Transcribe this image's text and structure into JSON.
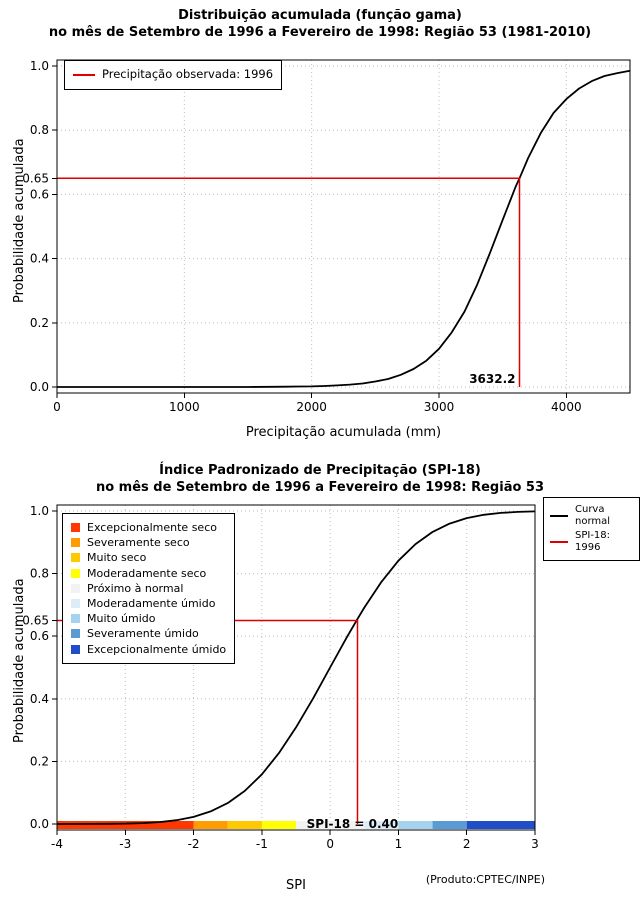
{
  "credit": "(Produto:CPTEC/INPE)",
  "colors": {
    "marker_red": "#dd0000",
    "curve_black": "#000000",
    "grid_gray": "#bdbdbd"
  },
  "chart_data": [
    {
      "type": "line",
      "title": "Distribuição acumulada (função gama)",
      "subtitle": "no mês de Setembro de 1996 a Fevereiro de 1998: Região 53 (1981-2010)",
      "xlabel": "Precipitação acumulada (mm)",
      "ylabel": "Probabilidade acumulada",
      "xlim": [
        0,
        4500
      ],
      "ylim": [
        0,
        1
      ],
      "xticks": [
        0,
        1000,
        2000,
        3000,
        4000
      ],
      "xtick_labels": [
        "0",
        "1000",
        "2000",
        "3000",
        "4000"
      ],
      "yticks": [
        0,
        0.2,
        0.4,
        0.6,
        0.8,
        1
      ],
      "ytick_labels": [
        "0.0",
        "0.2",
        "0.4",
        "0.6",
        "0.8",
        "1.0"
      ],
      "highlight_ytick": {
        "value": 0.65,
        "label": "0.65"
      },
      "legend": {
        "items": [
          {
            "label": "Precipitação observada: 1996",
            "color": "#dd0000"
          }
        ]
      },
      "marker": {
        "x": 3632.2,
        "y": 0.65,
        "label": "3632.2",
        "color": "#dd0000"
      },
      "series": [
        {
          "name": "Distribuição gama acumulada",
          "color": "#000000",
          "points": [
            [
              0,
              0
            ],
            [
              400,
              0
            ],
            [
              800,
              0
            ],
            [
              1200,
              0
            ],
            [
              1500,
              0
            ],
            [
              1700,
              0.0005
            ],
            [
              1800,
              0.001
            ],
            [
              1900,
              0.0015
            ],
            [
              2000,
              0.002
            ],
            [
              2100,
              0.0032
            ],
            [
              2200,
              0.005
            ],
            [
              2300,
              0.0075
            ],
            [
              2400,
              0.011
            ],
            [
              2500,
              0.017
            ],
            [
              2600,
              0.025
            ],
            [
              2700,
              0.038
            ],
            [
              2800,
              0.056
            ],
            [
              2900,
              0.082
            ],
            [
              3000,
              0.119
            ],
            [
              3100,
              0.17
            ],
            [
              3200,
              0.235
            ],
            [
              3300,
              0.319
            ],
            [
              3400,
              0.417
            ],
            [
              3500,
              0.521
            ],
            [
              3600,
              0.622
            ],
            [
              3632.2,
              0.65
            ],
            [
              3700,
              0.713
            ],
            [
              3800,
              0.792
            ],
            [
              3900,
              0.854
            ],
            [
              4000,
              0.897
            ],
            [
              4100,
              0.93
            ],
            [
              4200,
              0.953
            ],
            [
              4300,
              0.969
            ],
            [
              4400,
              0.978
            ],
            [
              4500,
              0.985
            ]
          ]
        }
      ]
    },
    {
      "type": "line",
      "title": "Índice Padronizado de Precipitação (SPI-18)",
      "subtitle": "no mês de Setembro de 1996 a Fevereiro de 1998: Região 53",
      "xlabel": "SPI",
      "ylabel": "Probabilidade acumulada",
      "xlim": [
        -4,
        3
      ],
      "ylim": [
        0,
        1
      ],
      "xticks": [
        -4,
        -3,
        -2,
        -1,
        0,
        1,
        2,
        3
      ],
      "xtick_labels": [
        "-4",
        "-3",
        "-2",
        "-1",
        "0",
        "1",
        "2",
        "3"
      ],
      "yticks": [
        0,
        0.2,
        0.4,
        0.6,
        0.8,
        1
      ],
      "ytick_labels": [
        "0.0",
        "0.2",
        "0.4",
        "0.6",
        "0.8",
        "1.0"
      ],
      "highlight_ytick": {
        "value": 0.65,
        "label": "0.65"
      },
      "category_legend": {
        "items": [
          {
            "label": "Excepcionalmente seco",
            "color": "#ff3800"
          },
          {
            "label": "Severamente seco",
            "color": "#ff9c00"
          },
          {
            "label": "Muito seco",
            "color": "#ffc800"
          },
          {
            "label": "Moderadamente seco",
            "color": "#ffff00"
          },
          {
            "label": "Próximo à normal",
            "color": "#f2f2f2"
          },
          {
            "label": "Moderadamente úmido",
            "color": "#dcedf8"
          },
          {
            "label": "Muito úmido",
            "color": "#a6d2ee"
          },
          {
            "label": "Severamente úmido",
            "color": "#5b9bd5"
          },
          {
            "label": "Excepcionalmente úmido",
            "color": "#1f4ec8"
          }
        ]
      },
      "line_legend": {
        "items": [
          {
            "label": "Curva\nnormal",
            "color": "#000000"
          },
          {
            "label": "SPI-18: 1996",
            "color": "#dd0000"
          }
        ]
      },
      "marker": {
        "x": 0.4,
        "y": 0.65,
        "label": "SPI-18 = 0.40",
        "color": "#dd0000"
      },
      "colorbar": {
        "segments": [
          {
            "from": -4,
            "to": -2,
            "color": "#ff3800"
          },
          {
            "from": -2,
            "to": -1.5,
            "color": "#ff9c00"
          },
          {
            "from": -1.5,
            "to": -1,
            "color": "#ffc800"
          },
          {
            "from": -1,
            "to": -0.5,
            "color": "#ffff00"
          },
          {
            "from": -0.5,
            "to": 0.5,
            "color": "#f2f2f2"
          },
          {
            "from": 0.5,
            "to": 1,
            "color": "#dcedf8"
          },
          {
            "from": 1,
            "to": 1.5,
            "color": "#a6d2ee"
          },
          {
            "from": 1.5,
            "to": 2,
            "color": "#5b9bd5"
          },
          {
            "from": 2,
            "to": 3,
            "color": "#1f4ec8"
          }
        ]
      },
      "series": [
        {
          "name": "Curva normal",
          "color": "#000000",
          "points": [
            [
              -4,
              0.0
            ],
            [
              -3.75,
              0.0001
            ],
            [
              -3.5,
              0.0002
            ],
            [
              -3.25,
              0.0006
            ],
            [
              -3,
              0.0013
            ],
            [
              -2.75,
              0.003
            ],
            [
              -2.5,
              0.0062
            ],
            [
              -2.25,
              0.0122
            ],
            [
              -2,
              0.0228
            ],
            [
              -1.75,
              0.0401
            ],
            [
              -1.5,
              0.0668
            ],
            [
              -1.25,
              0.1056
            ],
            [
              -1,
              0.1587
            ],
            [
              -0.75,
              0.2266
            ],
            [
              -0.5,
              0.3085
            ],
            [
              -0.25,
              0.4013
            ],
            [
              0,
              0.5
            ],
            [
              0.25,
              0.5987
            ],
            [
              0.4,
              0.6554
            ],
            [
              0.5,
              0.6915
            ],
            [
              0.75,
              0.7734
            ],
            [
              1,
              0.8413
            ],
            [
              1.25,
              0.8944
            ],
            [
              1.5,
              0.9332
            ],
            [
              1.75,
              0.9599
            ],
            [
              2,
              0.9772
            ],
            [
              2.25,
              0.9878
            ],
            [
              2.5,
              0.9938
            ],
            [
              2.75,
              0.997
            ],
            [
              3,
              0.9987
            ]
          ]
        }
      ]
    }
  ]
}
